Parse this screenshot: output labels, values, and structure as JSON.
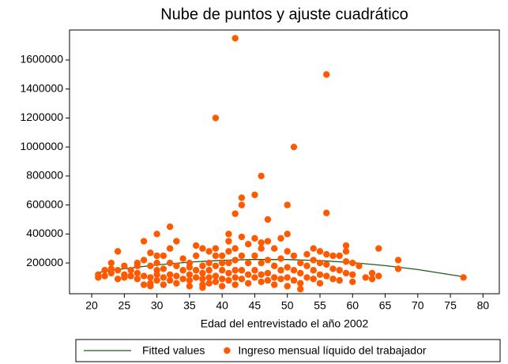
{
  "chart_data": {
    "type": "scatter",
    "title": "Nube de puntos y ajuste cuadrático",
    "x_label": "Edad del entrevistado el año 2002",
    "xlim": [
      16.6,
      82.5
    ],
    "xticks": [
      20,
      25,
      30,
      35,
      40,
      45,
      50,
      55,
      60,
      65,
      70,
      75,
      80
    ],
    "ylim": [
      -12000,
      1807000
    ],
    "yticks": [
      200000,
      400000,
      600000,
      800000,
      1000000,
      1200000,
      1400000,
      1600000
    ],
    "series": [
      {
        "name": "Fitted values",
        "type": "line",
        "color": "#1a5e1a",
        "x": [
          21,
          25,
          30,
          35,
          40,
          45,
          50,
          55,
          60,
          65,
          70,
          77
        ],
        "values": [
          135000,
          160600,
          186600,
          205800,
          218500,
          224500,
          223800,
          216500,
          202500,
          181900,
          154600,
          105000
        ]
      },
      {
        "name": "Ingreso mensual líquido del trabajador",
        "type": "scatter",
        "color": "#ff5a00",
        "x": [
          21,
          21,
          22,
          22,
          23,
          23,
          23,
          24,
          24,
          24,
          25,
          25,
          25,
          26,
          26,
          27,
          27,
          27,
          27,
          28,
          28,
          28,
          28,
          29,
          29,
          29,
          29,
          29,
          30,
          30,
          30,
          30,
          30,
          30,
          31,
          31,
          31,
          31,
          32,
          32,
          32,
          32,
          32,
          33,
          33,
          33,
          33,
          34,
          34,
          34,
          35,
          35,
          35,
          35,
          35,
          36,
          36,
          36,
          36,
          37,
          37,
          37,
          37,
          37,
          37,
          38,
          38,
          38,
          38,
          38,
          39,
          39,
          39,
          39,
          39,
          39,
          40,
          40,
          40,
          40,
          40,
          41,
          41,
          41,
          41,
          41,
          41,
          42,
          42,
          42,
          42,
          42,
          42,
          42,
          43,
          43,
          43,
          43,
          43,
          43,
          44,
          44,
          44,
          44,
          45,
          45,
          45,
          45,
          45,
          46,
          46,
          46,
          46,
          46,
          46,
          47,
          47,
          47,
          47,
          47,
          48,
          48,
          48,
          48,
          49,
          49,
          49,
          49,
          50,
          50,
          50,
          50,
          50,
          50,
          51,
          51,
          51,
          51,
          52,
          52,
          52,
          52,
          53,
          53,
          53,
          54,
          54,
          54,
          54,
          55,
          55,
          55,
          55,
          56,
          56,
          56,
          56,
          56,
          57,
          57,
          57,
          58,
          58,
          58,
          59,
          59,
          59,
          59,
          60,
          60,
          60,
          61,
          62,
          63,
          63,
          64,
          64,
          67,
          67,
          77
        ],
        "values": [
          120000,
          100000,
          110000,
          150000,
          160000,
          130000,
          200000,
          280000,
          90000,
          150000,
          120000,
          100000,
          180000,
          110000,
          150000,
          200000,
          130000,
          180000,
          90000,
          350000,
          220000,
          110000,
          50000,
          270000,
          180000,
          100000,
          60000,
          40000,
          400000,
          250000,
          200000,
          150000,
          120000,
          80000,
          250000,
          160000,
          100000,
          50000,
          450000,
          300000,
          200000,
          120000,
          80000,
          350000,
          180000,
          110000,
          60000,
          230000,
          150000,
          90000,
          200000,
          170000,
          120000,
          80000,
          40000,
          320000,
          250000,
          150000,
          100000,
          300000,
          180000,
          130000,
          90000,
          50000,
          30000,
          280000,
          200000,
          150000,
          100000,
          60000,
          1200000,
          300000,
          250000,
          180000,
          110000,
          70000,
          250000,
          200000,
          150000,
          90000,
          40000,
          400000,
          350000,
          280000,
          200000,
          130000,
          80000,
          1750000,
          540000,
          300000,
          220000,
          150000,
          100000,
          50000,
          650000,
          600000,
          380000,
          250000,
          150000,
          90000,
          330000,
          200000,
          120000,
          60000,
          670000,
          370000,
          250000,
          150000,
          100000,
          800000,
          340000,
          300000,
          200000,
          120000,
          70000,
          500000,
          350000,
          220000,
          130000,
          80000,
          300000,
          180000,
          100000,
          50000,
          370000,
          230000,
          150000,
          90000,
          600000,
          400000,
          280000,
          170000,
          100000,
          40000,
          1000000,
          250000,
          150000,
          80000,
          200000,
          130000,
          60000,
          20000,
          260000,
          180000,
          100000,
          300000,
          220000,
          150000,
          90000,
          280000,
          200000,
          120000,
          60000,
          1500000,
          545000,
          260000,
          190000,
          110000,
          250000,
          160000,
          90000,
          250000,
          150000,
          80000,
          320000,
          280000,
          210000,
          130000,
          200000,
          120000,
          70000,
          180000,
          100000,
          130000,
          90000,
          300000,
          110000,
          220000,
          160000,
          100000
        ]
      }
    ]
  }
}
